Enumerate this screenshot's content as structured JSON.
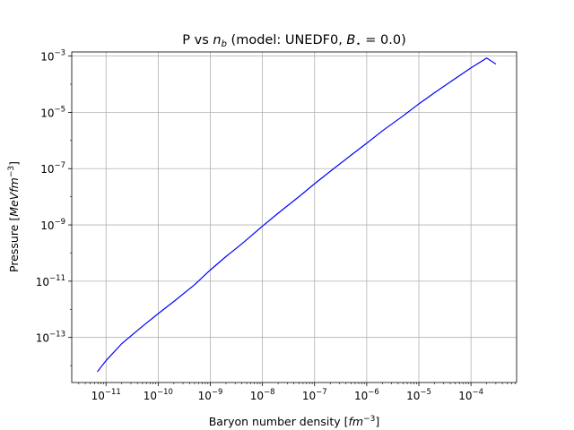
{
  "chart_data": {
    "type": "line",
    "title": "P vs n_b (model: UNEDF0, B_⋆ = 0.0)",
    "title_parts": {
      "prefix": "P vs ",
      "nb_symbol": "n",
      "nb_subscript": "b",
      "middle": " (model: UNEDF0, ",
      "bstar_symbol": "B",
      "bstar_subscript": "⋆",
      "suffix": " = 0.0)"
    },
    "xlabel": "Baryon number density [fm^-3]",
    "xlabel_parts": {
      "text": "Baryon number density [",
      "unit": "fm",
      "exp": "−3",
      "close": "]"
    },
    "ylabel": "Pressure [MeVfm^-3]",
    "ylabel_parts": {
      "text": "Pressure [",
      "unit": "MeVfm",
      "exp": "−3",
      "close": "]"
    },
    "xscale": "log",
    "yscale": "log",
    "grid": true,
    "line_color": "#0000ff",
    "x_tick_exponents": [
      -11,
      -10,
      -9,
      -8,
      -7,
      -6,
      -5,
      -4
    ],
    "y_tick_exponents": [
      -13,
      -11,
      -9,
      -7,
      -5,
      -3
    ],
    "tick_base": "10",
    "xlim": [
      2.2e-12,
      0.00075
    ],
    "ylim": [
      2.5e-15,
      0.0014
    ],
    "series": [
      {
        "x": [
          6.8e-12,
          1e-11,
          2e-11,
          5e-11,
          1e-10,
          2e-10,
          5e-10,
          1e-09,
          2e-09,
          4e-09,
          1e-08,
          2e-08,
          5e-08,
          1e-07,
          2e-07,
          5e-07,
          1e-06,
          2e-06,
          5e-06,
          1e-05,
          2e-05,
          5e-05,
          0.0001,
          0.0002,
          0.0003
        ],
        "y": [
          6e-15,
          1.5e-14,
          6e-14,
          2.5e-13,
          7e-13,
          1.9e-12,
          7.5e-12,
          2.5e-11,
          7.5e-11,
          2.1e-10,
          9e-10,
          2.6e-09,
          1e-08,
          2.9e-08,
          8e-08,
          3e-07,
          8e-07,
          2.2e-06,
          7.5e-06,
          2e-05,
          5e-05,
          0.00016,
          0.00038,
          0.00085,
          0.00052
        ]
      }
    ]
  }
}
